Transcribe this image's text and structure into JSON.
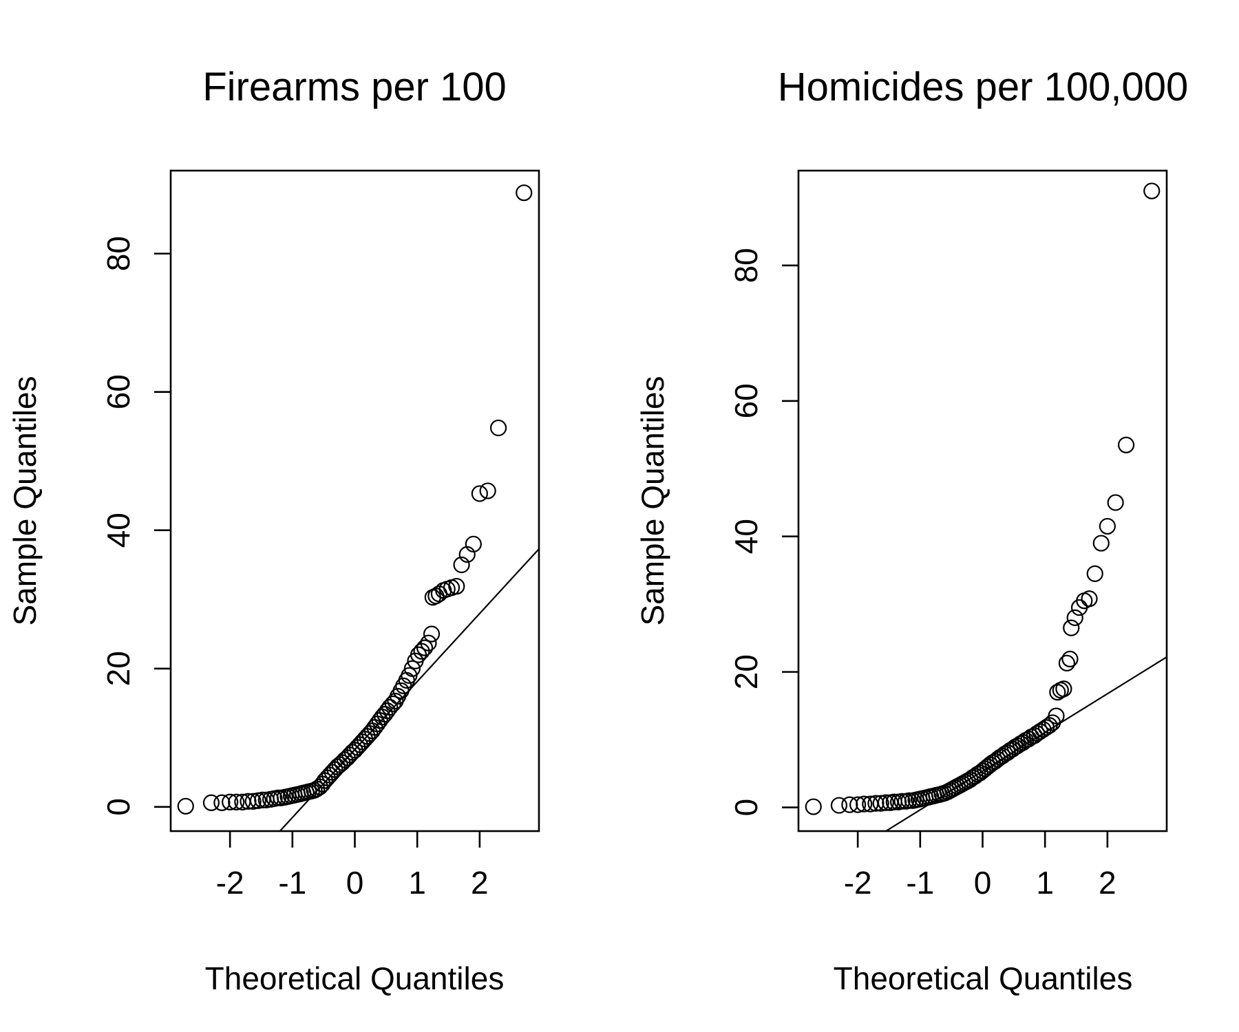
{
  "chart_data": [
    {
      "type": "scatter",
      "title": "Firearms per 100",
      "xlabel": "Theoretical Quantiles",
      "ylabel": "Sample Quantiles",
      "xlim": [
        -2.95,
        2.95
      ],
      "ylim": [
        -3.5,
        92
      ],
      "xticks": [
        -2,
        -1,
        0,
        1,
        2
      ],
      "yticks": [
        0,
        20,
        40,
        60,
        80
      ],
      "reference_line": {
        "x1": -1.2,
        "y1": -3.5,
        "x2": 2.95,
        "y2": 37.3
      },
      "points": [
        [
          -2.71,
          0.1
        ],
        [
          -2.3,
          0.6
        ],
        [
          -2.13,
          0.6
        ],
        [
          -2.0,
          0.7
        ],
        [
          -1.9,
          0.7
        ],
        [
          -1.8,
          0.7
        ],
        [
          -1.71,
          0.8
        ],
        [
          -1.63,
          0.8
        ],
        [
          -1.55,
          0.9
        ],
        [
          -1.48,
          1.0
        ],
        [
          -1.42,
          1.0
        ],
        [
          -1.35,
          1.1
        ],
        [
          -1.29,
          1.2
        ],
        [
          -1.23,
          1.3
        ],
        [
          -1.18,
          1.3
        ],
        [
          -1.12,
          1.4
        ],
        [
          -1.07,
          1.5
        ],
        [
          -1.02,
          1.6
        ],
        [
          -0.97,
          1.7
        ],
        [
          -0.92,
          1.8
        ],
        [
          -0.87,
          1.9
        ],
        [
          -0.83,
          2.0
        ],
        [
          -0.78,
          2.1
        ],
        [
          -0.74,
          2.2
        ],
        [
          -0.69,
          2.3
        ],
        [
          -0.65,
          2.4
        ],
        [
          -0.61,
          2.6
        ],
        [
          -0.56,
          2.9
        ],
        [
          -0.52,
          3.3
        ],
        [
          -0.48,
          3.8
        ],
        [
          -0.44,
          4.2
        ],
        [
          -0.4,
          4.6
        ],
        [
          -0.36,
          5.0
        ],
        [
          -0.32,
          5.4
        ],
        [
          -0.28,
          5.8
        ],
        [
          -0.24,
          6.1
        ],
        [
          -0.2,
          6.4
        ],
        [
          -0.16,
          6.8
        ],
        [
          -0.12,
          7.1
        ],
        [
          -0.08,
          7.5
        ],
        [
          -0.04,
          7.9
        ],
        [
          0.0,
          8.2
        ],
        [
          0.04,
          8.6
        ],
        [
          0.08,
          9.0
        ],
        [
          0.12,
          9.4
        ],
        [
          0.16,
          9.8
        ],
        [
          0.2,
          10.2
        ],
        [
          0.24,
          10.6
        ],
        [
          0.28,
          11.0
        ],
        [
          0.32,
          11.5
        ],
        [
          0.36,
          12.0
        ],
        [
          0.4,
          12.5
        ],
        [
          0.44,
          13.0
        ],
        [
          0.48,
          13.4
        ],
        [
          0.52,
          13.9
        ],
        [
          0.56,
          14.4
        ],
        [
          0.61,
          14.9
        ],
        [
          0.65,
          15.3
        ],
        [
          0.69,
          16.0
        ],
        [
          0.74,
          16.8
        ],
        [
          0.78,
          17.5
        ],
        [
          0.83,
          18.3
        ],
        [
          0.87,
          19.0
        ],
        [
          0.92,
          20.0
        ],
        [
          0.97,
          21.1
        ],
        [
          1.02,
          22.0
        ],
        [
          1.07,
          22.5
        ],
        [
          1.12,
          23.0
        ],
        [
          1.18,
          23.7
        ],
        [
          1.23,
          25.0
        ],
        [
          1.25,
          30.3
        ],
        [
          1.3,
          30.5
        ],
        [
          1.35,
          30.8
        ],
        [
          1.42,
          31.3
        ],
        [
          1.48,
          31.5
        ],
        [
          1.55,
          31.7
        ],
        [
          1.63,
          31.9
        ],
        [
          1.71,
          35.0
        ],
        [
          1.8,
          36.5
        ],
        [
          1.9,
          38.0
        ],
        [
          2.0,
          45.3
        ],
        [
          2.13,
          45.7
        ],
        [
          2.3,
          54.8
        ],
        [
          2.71,
          88.8
        ]
      ]
    },
    {
      "type": "scatter",
      "title": "Homicides per 100,000",
      "xlabel": "Theoretical Quantiles",
      "ylabel": "Sample Quantiles",
      "xlim": [
        -2.95,
        2.95
      ],
      "ylim": [
        -3.5,
        94
      ],
      "xticks": [
        -2,
        -1,
        0,
        1,
        2
      ],
      "yticks": [
        0,
        20,
        40,
        60,
        80
      ],
      "reference_line": {
        "x1": -1.55,
        "y1": -3.5,
        "x2": 2.95,
        "y2": 22.2
      },
      "points": [
        [
          -2.71,
          0.1
        ],
        [
          -2.3,
          0.3
        ],
        [
          -2.13,
          0.4
        ],
        [
          -2.0,
          0.4
        ],
        [
          -1.9,
          0.5
        ],
        [
          -1.8,
          0.5
        ],
        [
          -1.71,
          0.6
        ],
        [
          -1.63,
          0.6
        ],
        [
          -1.55,
          0.7
        ],
        [
          -1.48,
          0.7
        ],
        [
          -1.42,
          0.8
        ],
        [
          -1.35,
          0.8
        ],
        [
          -1.29,
          0.9
        ],
        [
          -1.23,
          0.9
        ],
        [
          -1.18,
          1.0
        ],
        [
          -1.12,
          1.0
        ],
        [
          -1.07,
          1.1
        ],
        [
          -1.02,
          1.2
        ],
        [
          -0.97,
          1.3
        ],
        [
          -0.92,
          1.4
        ],
        [
          -0.87,
          1.5
        ],
        [
          -0.83,
          1.6
        ],
        [
          -0.78,
          1.7
        ],
        [
          -0.74,
          1.8
        ],
        [
          -0.69,
          1.9
        ],
        [
          -0.65,
          2.0
        ],
        [
          -0.61,
          2.1
        ],
        [
          -0.56,
          2.3
        ],
        [
          -0.52,
          2.5
        ],
        [
          -0.48,
          2.7
        ],
        [
          -0.44,
          2.9
        ],
        [
          -0.4,
          3.1
        ],
        [
          -0.36,
          3.3
        ],
        [
          -0.32,
          3.5
        ],
        [
          -0.28,
          3.7
        ],
        [
          -0.24,
          3.9
        ],
        [
          -0.2,
          4.1
        ],
        [
          -0.16,
          4.4
        ],
        [
          -0.12,
          4.6
        ],
        [
          -0.08,
          4.9
        ],
        [
          -0.04,
          5.1
        ],
        [
          0.0,
          5.4
        ],
        [
          0.04,
          5.7
        ],
        [
          0.08,
          6.0
        ],
        [
          0.12,
          6.3
        ],
        [
          0.16,
          6.6
        ],
        [
          0.2,
          6.8
        ],
        [
          0.24,
          7.1
        ],
        [
          0.28,
          7.4
        ],
        [
          0.32,
          7.6
        ],
        [
          0.36,
          7.9
        ],
        [
          0.4,
          8.1
        ],
        [
          0.44,
          8.4
        ],
        [
          0.48,
          8.6
        ],
        [
          0.52,
          8.9
        ],
        [
          0.56,
          9.1
        ],
        [
          0.61,
          9.4
        ],
        [
          0.65,
          9.6
        ],
        [
          0.69,
          9.9
        ],
        [
          0.74,
          10.1
        ],
        [
          0.78,
          10.4
        ],
        [
          0.83,
          10.6
        ],
        [
          0.87,
          10.9
        ],
        [
          0.92,
          11.2
        ],
        [
          0.97,
          11.5
        ],
        [
          1.02,
          11.8
        ],
        [
          1.07,
          12.1
        ],
        [
          1.12,
          12.5
        ],
        [
          1.18,
          13.5
        ],
        [
          1.2,
          17.0
        ],
        [
          1.25,
          17.3
        ],
        [
          1.3,
          17.5
        ],
        [
          1.35,
          21.3
        ],
        [
          1.4,
          21.9
        ],
        [
          1.42,
          26.5
        ],
        [
          1.48,
          28.0
        ],
        [
          1.55,
          29.5
        ],
        [
          1.63,
          30.5
        ],
        [
          1.71,
          30.8
        ],
        [
          1.8,
          34.5
        ],
        [
          1.9,
          39.0
        ],
        [
          2.0,
          41.5
        ],
        [
          2.13,
          45.0
        ],
        [
          2.3,
          53.5
        ],
        [
          2.71,
          91.0
        ]
      ]
    }
  ]
}
